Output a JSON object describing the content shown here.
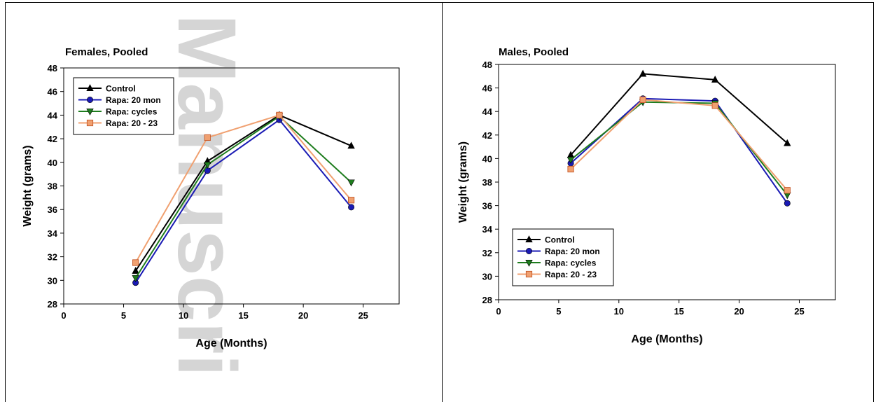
{
  "watermark": "Manuscri",
  "charts": [
    {
      "type": "line",
      "title": "Females, Pooled",
      "xlabel": "Age (Months)",
      "ylabel": "Weight (grams)",
      "xlim": [
        0,
        28
      ],
      "ylim": [
        28,
        48
      ],
      "xticks": [
        0,
        5,
        10,
        15,
        20,
        25
      ],
      "yticks": [
        28,
        30,
        32,
        34,
        36,
        38,
        40,
        42,
        44,
        46,
        48
      ],
      "legend_position": "top-left",
      "series": [
        {
          "name": "Control",
          "color": "#000000",
          "marker": "triangle-up",
          "x": [
            6,
            12,
            18,
            24
          ],
          "y": [
            30.8,
            40.1,
            44.0,
            41.4
          ]
        },
        {
          "name": "Rapa: 20 mon",
          "color": "#1a1ab4",
          "marker": "circle",
          "x": [
            6,
            12,
            18,
            24
          ],
          "y": [
            29.8,
            39.3,
            43.6,
            36.2
          ]
        },
        {
          "name": "Rapa: cycles",
          "color": "#1e7d1e",
          "marker": "triangle-down",
          "x": [
            6,
            12,
            18,
            24
          ],
          "y": [
            30.2,
            39.8,
            43.9,
            38.3
          ]
        },
        {
          "name": "Rapa: 20 - 23",
          "color": "#f0a070",
          "marker": "square",
          "x": [
            6,
            12,
            18,
            24
          ],
          "y": [
            31.5,
            42.1,
            44.0,
            36.8
          ]
        }
      ]
    },
    {
      "type": "line",
      "title": "Males, Pooled",
      "xlabel": "Age (Months)",
      "ylabel": "Weight (grams)",
      "xlim": [
        0,
        28
      ],
      "ylim": [
        28,
        48
      ],
      "xticks": [
        0,
        5,
        10,
        15,
        20,
        25
      ],
      "yticks": [
        28,
        30,
        32,
        34,
        36,
        38,
        40,
        42,
        44,
        46,
        48
      ],
      "legend_position": "bottom-left",
      "series": [
        {
          "name": "Control",
          "color": "#000000",
          "marker": "triangle-up",
          "x": [
            6,
            12,
            18,
            24
          ],
          "y": [
            40.3,
            47.2,
            46.7,
            41.3
          ]
        },
        {
          "name": "Rapa: 20 mon",
          "color": "#1a1ab4",
          "marker": "circle",
          "x": [
            6,
            12,
            18,
            24
          ],
          "y": [
            39.6,
            45.1,
            44.9,
            36.2
          ]
        },
        {
          "name": "Rapa: cycles",
          "color": "#1e7d1e",
          "marker": "triangle-down",
          "x": [
            6,
            12,
            18,
            24
          ],
          "y": [
            39.9,
            44.8,
            44.7,
            36.9
          ]
        },
        {
          "name": "Rapa: 20 - 23",
          "color": "#f0a070",
          "marker": "square",
          "x": [
            6,
            12,
            18,
            24
          ],
          "y": [
            39.1,
            45.0,
            44.5,
            37.3
          ]
        }
      ]
    }
  ]
}
